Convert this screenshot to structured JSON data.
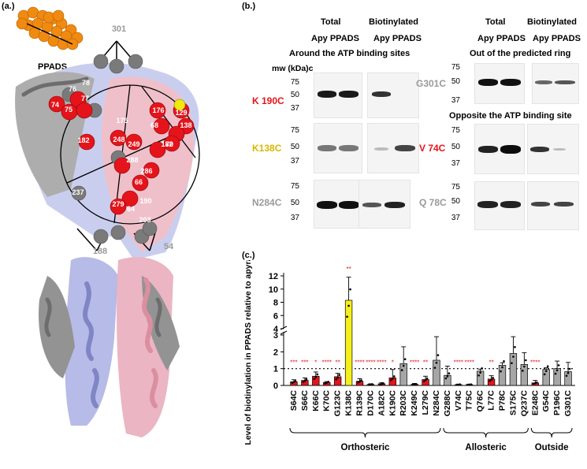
{
  "panel_a": {
    "label": "(a.)",
    "ligand": "PPADS",
    "residue_labels_white": [
      "78",
      "76",
      "77",
      "74",
      "75",
      "175",
      "182",
      "248",
      "249",
      "68",
      "288",
      "286",
      "66",
      "190",
      "279",
      "64",
      "203",
      "237",
      "70",
      "176",
      "129",
      "182",
      "138"
    ],
    "residue_labels_grey": [
      "301",
      "188",
      "54"
    ],
    "colors": {
      "protein_blue": "#9fa6d8",
      "protein_pink": "#e7a6b2",
      "protein_grey": "#7a7a7a",
      "residue_red": "#e5141b",
      "residue_yellow": "#f1e80c",
      "ligand_orange": "#f08a10"
    }
  },
  "panel_b": {
    "label": "(b.)",
    "left": {
      "headers": {
        "total": "Total",
        "biotinylated": "Biotinylated",
        "apy_ppads_1": "Apy PPADS",
        "apy_ppads_2": "Apy PPADS"
      },
      "section_title": "Around the ATP binding sites",
      "mw_label": "mw (kDa)c",
      "blots": [
        {
          "name": "K 190C",
          "color": "#e5141b",
          "ticks": [
            "75",
            "50",
            "37"
          ]
        },
        {
          "name": "K138C",
          "color": "#d8b800",
          "ticks": [
            "75",
            "50",
            "37"
          ]
        },
        {
          "name": "N284C",
          "color": "#9a9a9a",
          "ticks": [
            "75",
            "50",
            "37"
          ]
        }
      ]
    },
    "right": {
      "headers": {
        "total": "Total",
        "biotinylated": "Biotinylated",
        "apy_ppads_1": "Apy PPADS",
        "apy_ppads_2": "Apy PPADS"
      },
      "section_title_1": "Out of the predicted ring",
      "section_title_2": "Opposite the ATP binding site",
      "blots": [
        {
          "name": "G301C",
          "color": "#9a9a9a",
          "ticks": [
            "75",
            "50",
            "37"
          ]
        },
        {
          "name": "V 74C",
          "color": "#e5141b",
          "ticks": [
            "75",
            "50",
            "37"
          ]
        },
        {
          "name": "Q 78C",
          "color": "#9a9a9a",
          "ticks": [
            "75",
            "50",
            "37"
          ]
        }
      ]
    }
  },
  "panel_c": {
    "label": "(c.)"
  },
  "chart_data": {
    "type": "bar",
    "ylabel": "Level of biotinylation in PPADS relative to apyrase control",
    "y_ticks_lower": [
      "0",
      "1",
      "2",
      "3"
    ],
    "y_ticks_upper": [
      "4",
      "6",
      "8",
      "10",
      "12"
    ],
    "y_axis_break": [
      3.2,
      3.8
    ],
    "reference_line": 1,
    "categories": [
      "S64C",
      "S66C",
      "K66C",
      "K70C",
      "G123C",
      "K138C",
      "R139C",
      "D170C",
      "A182C",
      "K190C",
      "R203C",
      "K249C",
      "L279C",
      "N284C",
      "G288C",
      "V74C",
      "T75C",
      "Q76C",
      "L77C",
      "P78C",
      "S175C",
      "Q237C",
      "E248C",
      "G54C",
      "P196C",
      "G301C"
    ],
    "values": [
      0.22,
      0.3,
      0.55,
      0.18,
      0.52,
      8.3,
      0.25,
      0.06,
      0.1,
      0.45,
      1.3,
      0.07,
      0.35,
      1.5,
      0.6,
      0.05,
      0.05,
      0.85,
      0.38,
      1.2,
      1.9,
      1.25,
      0.15,
      0.95,
      1.0,
      0.82
    ],
    "errors": [
      0.12,
      0.15,
      0.25,
      0.05,
      0.2,
      3.5,
      0.15,
      0.04,
      0.07,
      0.5,
      1.0,
      0.05,
      0.2,
      1.4,
      0.55,
      0.03,
      0.03,
      0.12,
      0.2,
      0.15,
      1.0,
      0.7,
      0.15,
      0.1,
      0.45,
      0.55
    ],
    "colors": [
      "red",
      "red",
      "red",
      "red",
      "red",
      "yellow",
      "red",
      "red",
      "red",
      "red",
      "grey",
      "red",
      "red",
      "grey",
      "grey",
      "red",
      "red",
      "grey",
      "red",
      "grey",
      "grey",
      "grey",
      "red",
      "grey",
      "grey",
      "grey"
    ],
    "significance": [
      "***",
      "***",
      "*",
      "****",
      "**",
      "**",
      "****",
      "****",
      "****",
      "*",
      "",
      "****",
      "**",
      "",
      "",
      "****",
      "****",
      "",
      "**",
      "",
      "",
      "",
      "****",
      "",
      "",
      ""
    ],
    "groups": [
      {
        "name": "Orthosteric",
        "start": 0,
        "end": 13
      },
      {
        "name": "Allosteric",
        "start": 14,
        "end": 21
      },
      {
        "name": "Outside",
        "start": 22,
        "end": 25
      }
    ],
    "palette": {
      "red": "#e5141b",
      "yellow": "#f5ef1c",
      "grey": "#a6a6a6"
    }
  }
}
